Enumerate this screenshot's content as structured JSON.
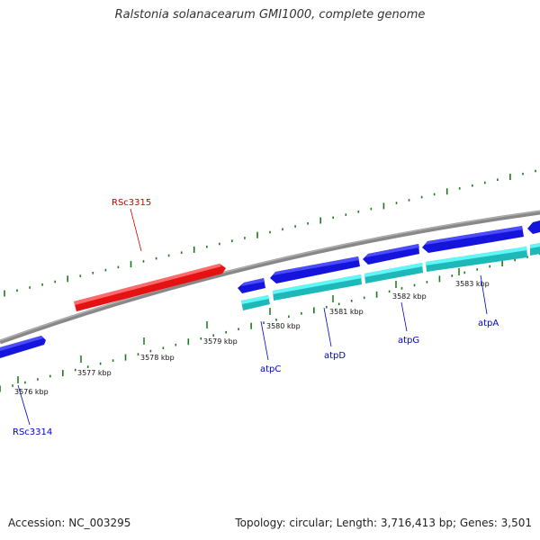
{
  "title": "Ralstonia solanacearum GMI1000, complete genome",
  "footer": {
    "accession": "Accession: NC_003295",
    "stats": "Topology: circular; Length: 3,716,413 bp; Genes: 3,501"
  },
  "colors": {
    "backbone": "#888888",
    "tick": "#1a7a1a",
    "forward_cds": "#1414dc",
    "reverse_cds": "#e41212",
    "cds_lane": "#22e8e8",
    "forward_label": "#0000cc",
    "reverse_label": "#cc0000"
  },
  "ruler": {
    "tick_labels": [
      "3576 kbp",
      "3577 kbp",
      "3578 kbp",
      "3579 kbp",
      "3580 kbp",
      "3581 kbp",
      "3582 kbp",
      "3583 kbp"
    ]
  },
  "genes": [
    {
      "name": "RSc3314",
      "strand": "forward"
    },
    {
      "name": "RSc3315",
      "strand": "reverse"
    },
    {
      "name": "atpC",
      "strand": "forward"
    },
    {
      "name": "atpD",
      "strand": "forward"
    },
    {
      "name": "atpG",
      "strand": "forward"
    },
    {
      "name": "atpA",
      "strand": "forward"
    }
  ]
}
